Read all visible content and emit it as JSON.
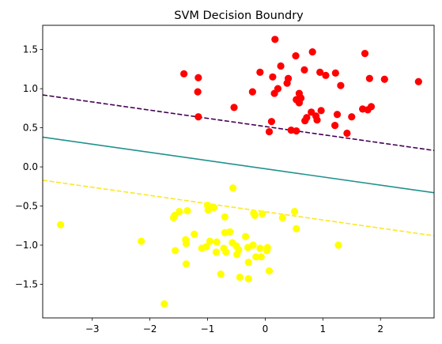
{
  "chart_data": {
    "type": "scatter",
    "title": "SVM Decision Boundry",
    "xlabel": "",
    "ylabel": "",
    "xlim": [
      -3.86,
      2.93
    ],
    "ylim": [
      -1.93,
      1.81
    ],
    "x_ticks": [
      -3,
      -2,
      -1,
      0,
      1,
      2
    ],
    "x_tick_labels": [
      "−3",
      "−2",
      "−1",
      "0",
      "1",
      "2"
    ],
    "y_ticks": [
      -1.5,
      -1.0,
      -0.5,
      0.0,
      0.5,
      1.0,
      1.5
    ],
    "y_tick_labels": [
      "−1.5",
      "−1.0",
      "−0.5",
      "0.0",
      "0.5",
      "1.0",
      "1.5"
    ],
    "grid": false,
    "series": [
      {
        "color": "#ff0000",
        "points": [
          [
            0.17,
            1.63
          ],
          [
            0.82,
            1.47
          ],
          [
            1.73,
            1.45
          ],
          [
            0.53,
            1.42
          ],
          [
            -1.41,
            1.19
          ],
          [
            -0.09,
            1.21
          ],
          [
            0.27,
            1.29
          ],
          [
            0.68,
            1.24
          ],
          [
            0.95,
            1.21
          ],
          [
            1.05,
            1.17
          ],
          [
            1.22,
            1.2
          ],
          [
            1.81,
            1.13
          ],
          [
            2.07,
            1.12
          ],
          [
            2.66,
            1.09
          ],
          [
            -1.16,
            1.14
          ],
          [
            0.13,
            1.15
          ],
          [
            0.4,
            1.13
          ],
          [
            0.38,
            1.07
          ],
          [
            1.31,
            1.04
          ],
          [
            -1.17,
            0.96
          ],
          [
            -0.22,
            0.96
          ],
          [
            0.16,
            0.94
          ],
          [
            0.22,
            1.0
          ],
          [
            0.59,
            0.94
          ],
          [
            0.62,
            0.88
          ],
          [
            0.54,
            0.86
          ],
          [
            0.59,
            0.82
          ],
          [
            -0.54,
            0.76
          ],
          [
            0.8,
            0.7
          ],
          [
            0.97,
            0.72
          ],
          [
            1.25,
            0.67
          ],
          [
            1.69,
            0.74
          ],
          [
            1.78,
            0.73
          ],
          [
            1.84,
            0.77
          ],
          [
            -1.16,
            0.64
          ],
          [
            0.72,
            0.63
          ],
          [
            0.69,
            0.59
          ],
          [
            0.88,
            0.65
          ],
          [
            0.9,
            0.6
          ],
          [
            1.5,
            0.64
          ],
          [
            0.11,
            0.58
          ],
          [
            0.45,
            0.47
          ],
          [
            0.54,
            0.46
          ],
          [
            0.07,
            0.45
          ],
          [
            1.42,
            0.43
          ],
          [
            1.21,
            0.53
          ]
        ]
      },
      {
        "color": "#ffff00",
        "points": [
          [
            -3.55,
            -0.74
          ],
          [
            -0.56,
            -0.27
          ],
          [
            -1.49,
            -0.57
          ],
          [
            -1.35,
            -0.56
          ],
          [
            -1.0,
            -0.49
          ],
          [
            -0.89,
            -0.52
          ],
          [
            -0.2,
            -0.59
          ],
          [
            -0.05,
            -0.6
          ],
          [
            0.51,
            -0.57
          ],
          [
            -0.18,
            -0.62
          ],
          [
            0.3,
            -0.65
          ],
          [
            -1.59,
            -0.65
          ],
          [
            -1.57,
            -0.62
          ],
          [
            -0.7,
            -0.64
          ],
          [
            -0.99,
            -0.55
          ],
          [
            0.54,
            -0.79
          ],
          [
            -1.23,
            -0.86
          ],
          [
            -0.7,
            -0.84
          ],
          [
            -0.61,
            -0.83
          ],
          [
            -0.34,
            -0.89
          ],
          [
            -2.15,
            -0.95
          ],
          [
            -1.38,
            -0.93
          ],
          [
            -1.37,
            -0.98
          ],
          [
            -0.96,
            -0.95
          ],
          [
            -0.84,
            -0.96
          ],
          [
            -0.57,
            -0.97
          ],
          [
            -0.5,
            -1.01
          ],
          [
            -0.3,
            -1.03
          ],
          [
            -0.21,
            -1.0
          ],
          [
            -0.09,
            -1.04
          ],
          [
            0.04,
            -1.03
          ],
          [
            1.27,
            -1.0
          ],
          [
            -1.56,
            -1.07
          ],
          [
            -1.1,
            -1.04
          ],
          [
            -1.02,
            -1.02
          ],
          [
            -0.72,
            -1.04
          ],
          [
            -0.68,
            -1.09
          ],
          [
            -0.46,
            -1.06
          ],
          [
            -0.49,
            -1.12
          ],
          [
            -0.85,
            -1.09
          ],
          [
            0.03,
            -1.07
          ],
          [
            -1.37,
            -1.24
          ],
          [
            -0.29,
            -1.22
          ],
          [
            -0.16,
            -1.15
          ],
          [
            -0.07,
            -1.15
          ],
          [
            0.07,
            -1.33
          ],
          [
            -0.77,
            -1.37
          ],
          [
            -0.44,
            -1.41
          ],
          [
            -0.29,
            -1.43
          ],
          [
            -1.75,
            -1.75
          ]
        ]
      }
    ],
    "lines": [
      {
        "style": "dashed",
        "color": "#440154",
        "x": [
          -3.86,
          2.93
        ],
        "y": [
          0.92,
          0.21
        ]
      },
      {
        "style": "solid",
        "color": "#21918c",
        "x": [
          -3.86,
          2.93
        ],
        "y": [
          0.38,
          -0.33
        ]
      },
      {
        "style": "dashed",
        "color": "#fde725",
        "x": [
          -3.86,
          2.93
        ],
        "y": [
          -0.17,
          -0.88
        ]
      }
    ]
  }
}
